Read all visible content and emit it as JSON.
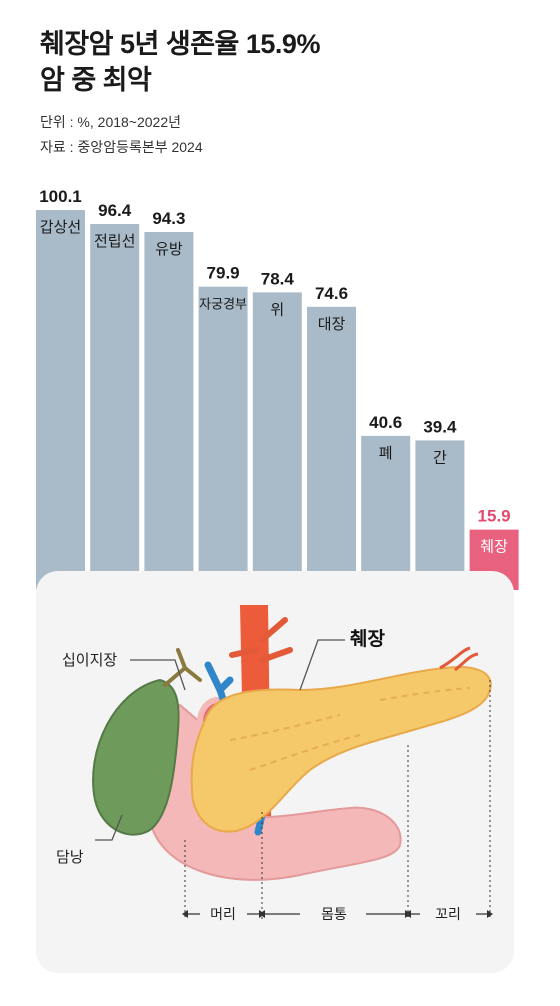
{
  "header": {
    "title_line1": "췌장암 5년 생존율 15.9%",
    "title_line2": "암 중 최악",
    "unit": "단위 : %, 2018~2022년",
    "source": "자료 : 중앙암등록본부 2024"
  },
  "colors": {
    "bar": "#a9bac8",
    "highlight": "#e8627f",
    "highlight_text": "#e24a6c",
    "background": "#ffffff"
  },
  "chart_data": {
    "type": "bar",
    "categories": [
      "갑상선",
      "전립선",
      "유방",
      "자궁경부",
      "위",
      "대장",
      "폐",
      "간",
      "췌장"
    ],
    "values": [
      100.1,
      96.4,
      94.3,
      79.9,
      78.4,
      74.6,
      40.6,
      39.4,
      15.9
    ],
    "value_labels": [
      "100.1",
      "96.4",
      "94.3",
      "79.9",
      "78.4",
      "74.6",
      "40.6",
      "39.4",
      "15.9"
    ],
    "highlight": "췌장",
    "ylim": [
      0,
      100.1
    ],
    "grid": false,
    "legend": "none"
  },
  "anatomy": {
    "labels": {
      "duodenum": "십이지장",
      "pancreas": "췌장",
      "gallbladder": "담낭",
      "head": "머리",
      "body": "몸통",
      "tail": "꼬리"
    }
  }
}
